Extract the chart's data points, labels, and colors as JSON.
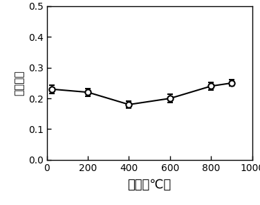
{
  "x": [
    25,
    200,
    400,
    600,
    800,
    900
  ],
  "y": [
    0.23,
    0.22,
    0.18,
    0.2,
    0.24,
    0.25
  ],
  "yerr": [
    0.013,
    0.012,
    0.012,
    0.013,
    0.012,
    0.01
  ],
  "xlabel": "温度（℃）",
  "ylabel": "摩擦系数",
  "xlim": [
    0,
    1000
  ],
  "ylim": [
    0.0,
    0.5
  ],
  "xticks": [
    0,
    200,
    400,
    600,
    800,
    1000
  ],
  "yticks": [
    0.0,
    0.1,
    0.2,
    0.3,
    0.4,
    0.5
  ],
  "line_color": "#000000",
  "marker_face": "#ffffff",
  "marker_edge": "#000000",
  "marker_size": 6,
  "line_width": 1.5,
  "background_color": "#ffffff",
  "xlabel_fontsize": 13,
  "ylabel_fontsize": 11
}
